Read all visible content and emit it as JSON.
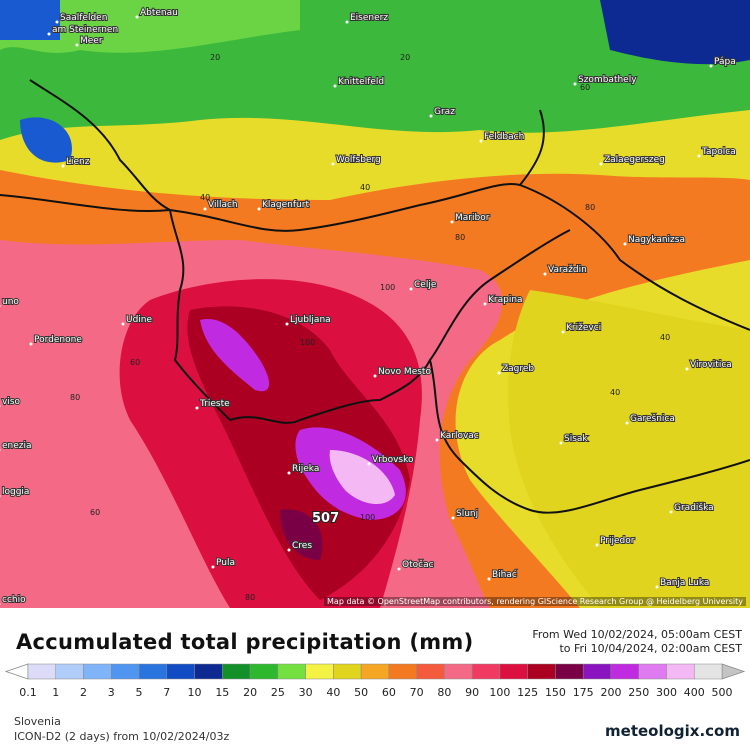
{
  "map": {
    "attribution": "Map data © OpenStreetMap contributors, rendering GIScience Research Group @ Heidelberg University",
    "max_label": "507",
    "cities": [
      "Saalfelden",
      "am Steinernen",
      "Meer",
      "Abtenau",
      "Eisenerz",
      "Knittelfeld",
      "Szombathely",
      "Pápa",
      "Graz",
      "Lienz",
      "Feldbach",
      "Wolfsberg",
      "Zalaegerszeg",
      "Tapolca",
      "Villach",
      "Klagenfurt",
      "Maribor",
      "Nagykanizsa",
      "Celje",
      "Varaždin",
      "Udine",
      "Ljubljana",
      "Krapina",
      "Križevci",
      "Pordenone",
      "Novo Mesto",
      "Zagreb",
      "Virovitica",
      "Trieste",
      "Karlovac",
      "Sisak",
      "Garešnica",
      "enezia",
      "Rijeka",
      "Vrbovsko",
      "loggia",
      "Slunj",
      "Gradiška",
      "Cres",
      "Pula",
      "Otočac",
      "Bihać",
      "Prijedor",
      "Banja Luka",
      "uno",
      "viso",
      "cchio"
    ],
    "contour_labels": [
      20,
      20,
      40,
      40,
      60,
      80,
      80,
      100,
      100,
      60,
      40,
      80,
      60,
      40,
      80,
      100
    ]
  },
  "legend": {
    "title": "Accumulated total precipitation (mm)",
    "period_from": "From Wed 10/02/2024, 05:00am CEST",
    "period_to": "to Fri 10/04/2024, 02:00am CEST",
    "levels": [
      0.1,
      1,
      2,
      3,
      5,
      7,
      10,
      15,
      20,
      25,
      30,
      40,
      50,
      60,
      70,
      80,
      90,
      100,
      125,
      150,
      175,
      200,
      250,
      300,
      400,
      500
    ],
    "colors": [
      "#dcdcf8",
      "#b0ccf8",
      "#80b4f8",
      "#5096f0",
      "#2a74e0",
      "#124cc4",
      "#0c2a92",
      "#14902a",
      "#2eb82e",
      "#74e040",
      "#f4f244",
      "#e0d41e",
      "#f4a624",
      "#f47a22",
      "#f45a3c",
      "#f46a86",
      "#f03a62",
      "#dc1040",
      "#ac0022",
      "#7a0046",
      "#8a14c0",
      "#c02ae0",
      "#e07af0",
      "#f4b8f4",
      "#e4e4e4"
    ],
    "under_color": "#ffffff",
    "over_color": "#c4c4c4"
  },
  "footer": {
    "region": "Slovenia",
    "model": "ICON-D2 (2 days) from 10/02/2024/03z",
    "brand": "meteologix.com"
  }
}
